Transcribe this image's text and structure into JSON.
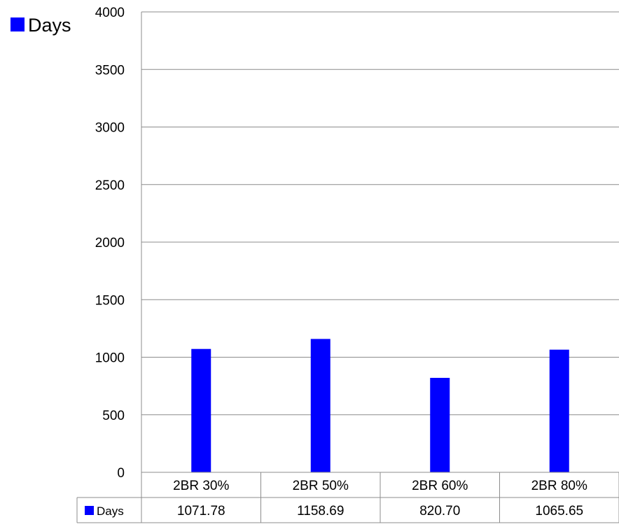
{
  "chart_data": {
    "type": "bar",
    "categories": [
      "2BR 30%",
      "2BR 50%",
      "2BR 60%",
      "2BR 80%"
    ],
    "series": [
      {
        "name": "Days",
        "values": [
          1071.78,
          1158.69,
          820.7,
          1065.65
        ],
        "value_labels": [
          "1071.78",
          "1158.69",
          "820.70",
          "1065.65"
        ],
        "color": "#0000ff"
      }
    ],
    "ylim": [
      0,
      4000
    ],
    "yticks": [
      0,
      500,
      1000,
      1500,
      2000,
      2500,
      3000,
      3500,
      4000
    ],
    "grid": true,
    "legend": {
      "position": "top-left",
      "label": "Days"
    },
    "data_table": true
  }
}
